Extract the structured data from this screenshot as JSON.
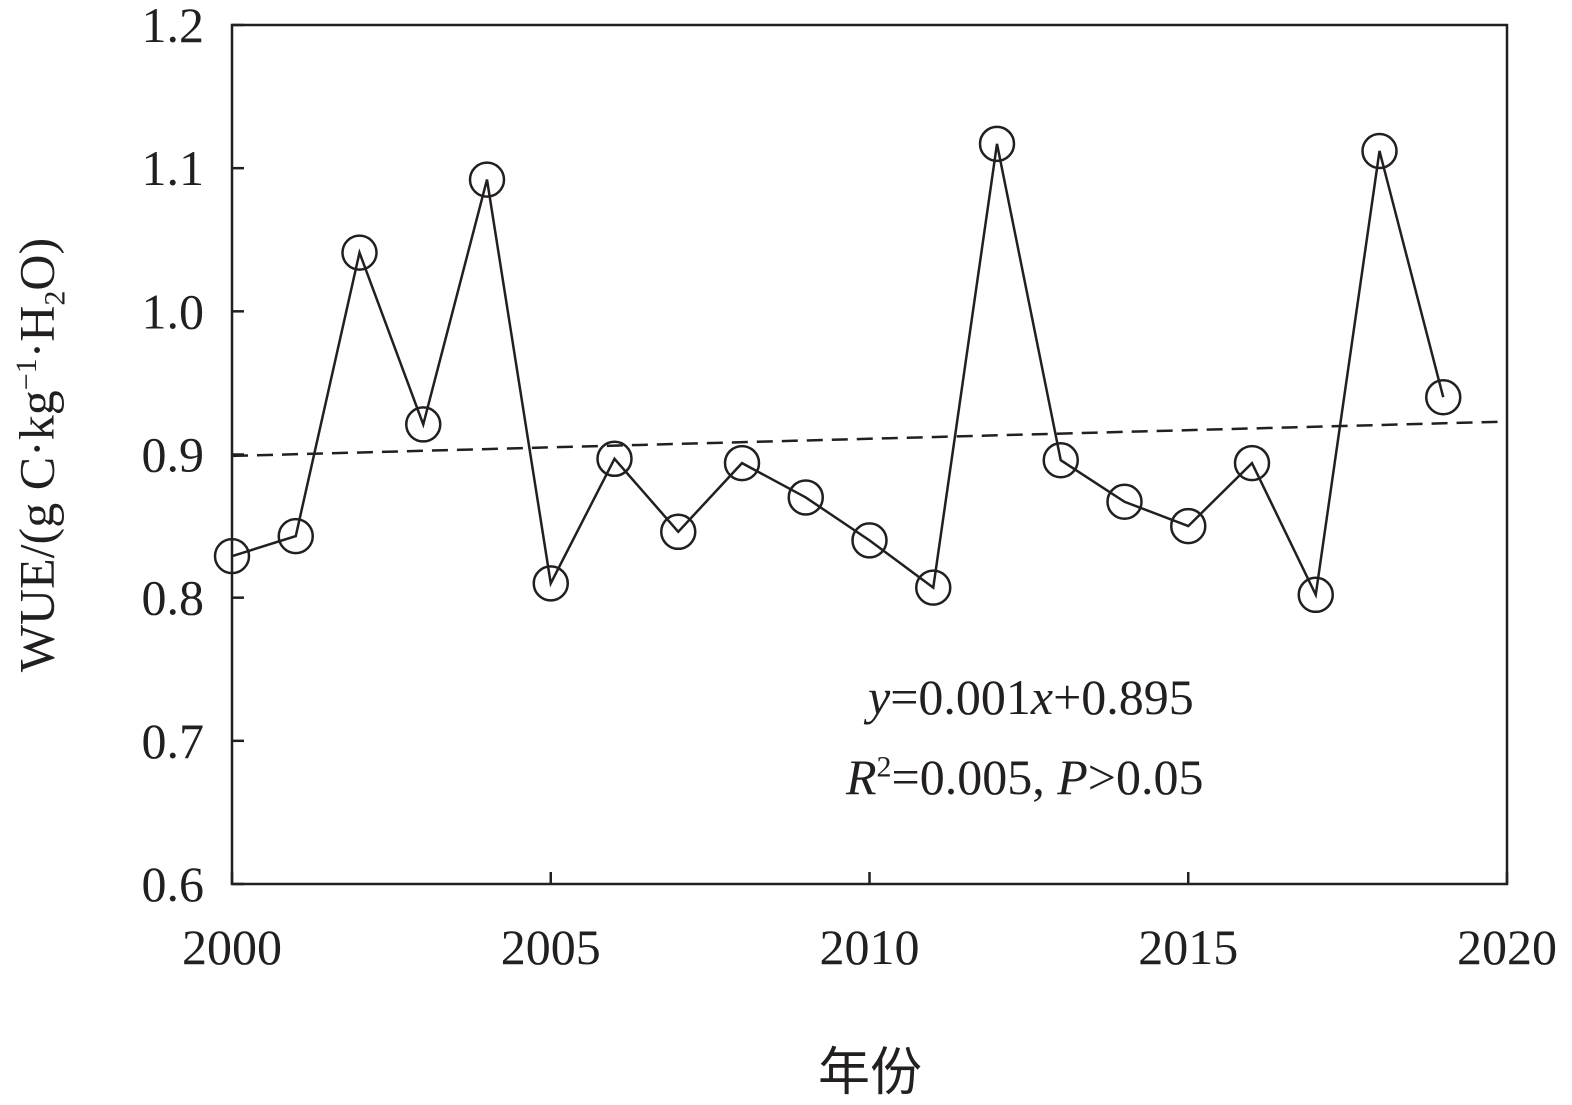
{
  "chart_data": {
    "type": "line",
    "title": "",
    "xlabel": "年份",
    "ylabel": {
      "main": "WUE/(g C·kg",
      "sup": "−1",
      "mid": "·H",
      "sub": "2",
      "end": "O)"
    },
    "xlim": [
      2000,
      2020
    ],
    "ylim": [
      0.6,
      1.2
    ],
    "xticks": [
      "2000",
      "2005",
      "2010",
      "2015",
      "2020"
    ],
    "yticks": [
      "0.6",
      "0.7",
      "0.8",
      "0.9",
      "1.0",
      "1.1",
      "1.2"
    ],
    "grid": false,
    "series": [
      {
        "name": "WUE",
        "marker": "open-circle",
        "color": "#231f20",
        "x": [
          2000,
          2001,
          2002,
          2003,
          2004,
          2005,
          2006,
          2007,
          2008,
          2009,
          2010,
          2011,
          2012,
          2013,
          2014,
          2015,
          2016,
          2017,
          2018,
          2019
        ],
        "values": [
          0.829,
          0.843,
          1.041,
          0.921,
          1.092,
          0.81,
          0.897,
          0.846,
          0.894,
          0.87,
          0.84,
          0.807,
          1.117,
          0.896,
          0.867,
          0.85,
          0.894,
          0.802,
          1.112,
          0.94
        ]
      }
    ],
    "trendline": {
      "style": "dashed",
      "x": [
        2000,
        2020
      ],
      "y": [
        0.899,
        0.923
      ]
    },
    "annotation": {
      "line1": {
        "y": "y",
        "eq": "=0.001",
        "x": "x",
        "rest": "+0.895"
      },
      "line2": {
        "r": "R",
        "sup": "2",
        "eq": "=0.005, ",
        "p": "P",
        "rest": ">0.05"
      }
    }
  }
}
